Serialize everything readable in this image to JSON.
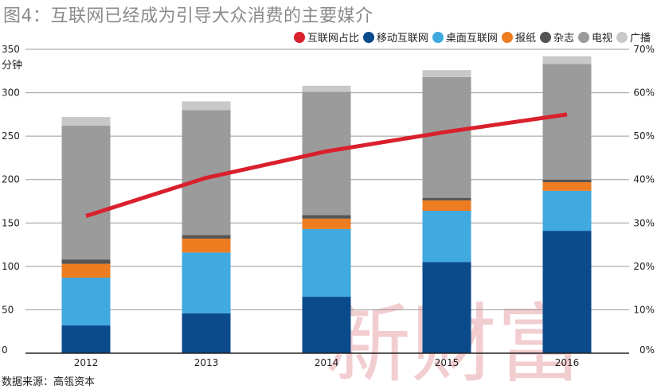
{
  "chart_data": {
    "type": "bar",
    "title": "图4：互联网已经成为引导大众消费的主要媒介",
    "ylabel_unit": "分钟",
    "categories": [
      "2012",
      "2013",
      "2014",
      "2015",
      "2016"
    ],
    "left_axis": {
      "ylim": [
        0,
        350
      ],
      "ticks": [
        0,
        50,
        100,
        150,
        200,
        250,
        300,
        350
      ]
    },
    "right_axis": {
      "ylim": [
        0,
        70
      ],
      "ticks": [
        "0%",
        "10%",
        "20%",
        "30%",
        "40%",
        "50%",
        "60%",
        "70%"
      ]
    },
    "series": [
      {
        "name": "移动互联网",
        "color": "#0b4b8c",
        "values": [
          32,
          46,
          65,
          105,
          141
        ]
      },
      {
        "name": "桌面互联网",
        "color": "#3fa9e0",
        "values": [
          55,
          70,
          78,
          59,
          46
        ]
      },
      {
        "name": "报纸",
        "color": "#ee7d22",
        "values": [
          16,
          16,
          12,
          12,
          10
        ]
      },
      {
        "name": "杂志",
        "color": "#555555",
        "values": [
          5,
          4,
          4,
          3,
          3
        ]
      },
      {
        "name": "电视",
        "color": "#9b9b9b",
        "values": [
          154,
          144,
          142,
          139,
          133
        ]
      },
      {
        "name": "广播",
        "color": "#c8c8c8",
        "values": [
          10,
          10,
          7,
          8,
          9
        ]
      }
    ],
    "line": {
      "name": "互联网占比",
      "color": "#d9202d",
      "axis": "right",
      "values": [
        31.6,
        40.4,
        46.5,
        51.0,
        55.0
      ]
    },
    "legend_order": [
      "互联网占比",
      "移动互联网",
      "桌面互联网",
      "报纸",
      "杂志",
      "电视",
      "广播"
    ],
    "source": "数据来源：高瓴资本"
  },
  "watermark": "新财富"
}
